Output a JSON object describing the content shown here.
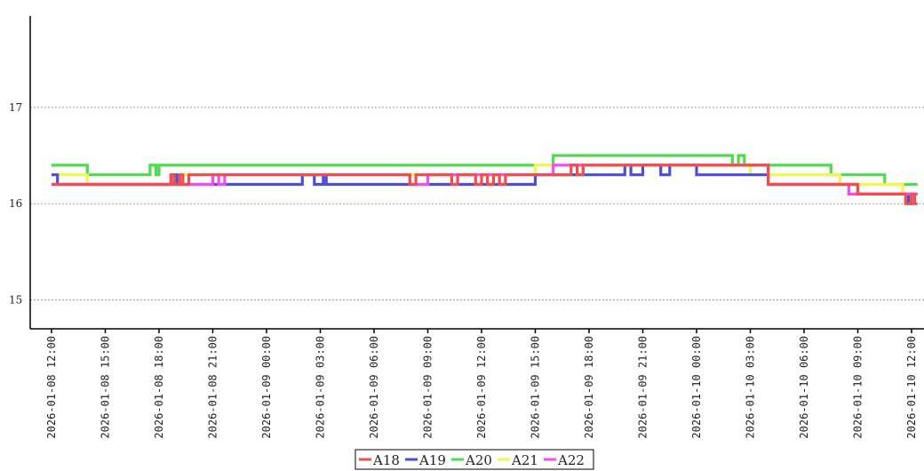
{
  "chart_data": {
    "type": "line",
    "step": true,
    "title": "",
    "xlabel": "",
    "ylabel": "",
    "ylim": [
      14.7,
      17.95
    ],
    "yticks": [
      15,
      16,
      17
    ],
    "xlim": [
      "2026-01-08 12:00",
      "2026-01-10 12:20"
    ],
    "xticks": [
      "2026-01-08 12:00",
      "2026-01-08 15:00",
      "2026-01-08 18:00",
      "2026-01-08 21:00",
      "2026-01-09 00:00",
      "2026-01-09 03:00",
      "2026-01-09 06:00",
      "2026-01-09 09:00",
      "2026-01-09 12:00",
      "2026-01-09 15:00",
      "2026-01-09 18:00",
      "2026-01-09 21:00",
      "2026-01-10 00:00",
      "2026-01-10 03:00",
      "2026-01-10 06:00",
      "2026-01-10 09:00",
      "2026-01-10 12:00"
    ],
    "grid": true,
    "legend_position": "bottom",
    "series": [
      {
        "name": "A20",
        "color": "#4ddc4d",
        "points": [
          [
            "2026-01-08 12:00",
            16.4
          ],
          [
            "2026-01-08 14:00",
            16.3
          ],
          [
            "2026-01-08 17:30",
            16.4
          ],
          [
            "2026-01-08 17:50",
            16.3
          ],
          [
            "2026-01-08 18:00",
            16.4
          ],
          [
            "2026-01-09 16:00",
            16.5
          ],
          [
            "2026-01-10 02:00",
            16.4
          ],
          [
            "2026-01-10 02:20",
            16.5
          ],
          [
            "2026-01-10 02:40",
            16.4
          ],
          [
            "2026-01-10 07:30",
            16.3
          ],
          [
            "2026-01-10 10:30",
            16.2
          ],
          [
            "2026-01-10 12:20",
            16.2
          ]
        ]
      },
      {
        "name": "A21",
        "color": "#f5f54d",
        "points": [
          [
            "2026-01-08 12:00",
            16.3
          ],
          [
            "2026-01-08 14:00",
            16.2
          ],
          [
            "2026-01-08 19:00",
            16.3
          ],
          [
            "2026-01-09 15:00",
            16.4
          ],
          [
            "2026-01-10 03:00",
            16.3
          ],
          [
            "2026-01-10 08:00",
            16.2
          ],
          [
            "2026-01-10 11:30",
            16.1
          ],
          [
            "2026-01-10 12:20",
            16.1
          ]
        ]
      },
      {
        "name": "A19",
        "color": "#4d4ddc",
        "points": [
          [
            "2026-01-08 12:00",
            16.3
          ],
          [
            "2026-01-08 12:20",
            16.2
          ],
          [
            "2026-01-08 18:40",
            16.3
          ],
          [
            "2026-01-08 19:00",
            16.2
          ],
          [
            "2026-01-09 02:00",
            16.3
          ],
          [
            "2026-01-09 02:40",
            16.2
          ],
          [
            "2026-01-09 03:10",
            16.3
          ],
          [
            "2026-01-09 03:20",
            16.2
          ],
          [
            "2026-01-09 15:00",
            16.3
          ],
          [
            "2026-01-09 20:00",
            16.4
          ],
          [
            "2026-01-09 20:20",
            16.3
          ],
          [
            "2026-01-09 21:00",
            16.4
          ],
          [
            "2026-01-09 22:00",
            16.3
          ],
          [
            "2026-01-09 22:30",
            16.4
          ],
          [
            "2026-01-10 00:00",
            16.3
          ],
          [
            "2026-01-10 04:00",
            16.2
          ],
          [
            "2026-01-10 09:00",
            16.1
          ],
          [
            "2026-01-10 11:50",
            16.0
          ],
          [
            "2026-01-10 12:00",
            16.1
          ],
          [
            "2026-01-10 12:20",
            16.1
          ]
        ]
      },
      {
        "name": "A22",
        "color": "#f24df2",
        "points": [
          [
            "2026-01-08 12:00",
            16.2
          ],
          [
            "2026-01-08 21:00",
            16.3
          ],
          [
            "2026-01-08 21:20",
            16.2
          ],
          [
            "2026-01-08 21:40",
            16.3
          ],
          [
            "2026-01-09 08:00",
            16.2
          ],
          [
            "2026-01-09 09:00",
            16.3
          ],
          [
            "2026-01-09 16:00",
            16.4
          ],
          [
            "2026-01-10 04:00",
            16.2
          ],
          [
            "2026-01-10 08:30",
            16.1
          ],
          [
            "2026-01-10 12:20",
            16.1
          ]
        ]
      },
      {
        "name": "A18",
        "color": "#f24d4d",
        "points": [
          [
            "2026-01-08 12:00",
            16.2
          ],
          [
            "2026-01-08 18:40",
            16.3
          ],
          [
            "2026-01-08 18:50",
            16.2
          ],
          [
            "2026-01-08 19:10",
            16.3
          ],
          [
            "2026-01-08 19:20",
            16.2
          ],
          [
            "2026-01-08 19:40",
            16.3
          ],
          [
            "2026-01-09 08:00",
            16.2
          ],
          [
            "2026-01-09 08:20",
            16.3
          ],
          [
            "2026-01-09 10:20",
            16.2
          ],
          [
            "2026-01-09 10:40",
            16.3
          ],
          [
            "2026-01-09 11:40",
            16.2
          ],
          [
            "2026-01-09 12:00",
            16.3
          ],
          [
            "2026-01-09 12:20",
            16.2
          ],
          [
            "2026-01-09 12:40",
            16.3
          ],
          [
            "2026-01-09 13:00",
            16.2
          ],
          [
            "2026-01-09 13:20",
            16.3
          ],
          [
            "2026-01-09 15:00",
            16.3
          ],
          [
            "2026-01-09 17:00",
            16.4
          ],
          [
            "2026-01-09 17:20",
            16.3
          ],
          [
            "2026-01-09 17:40",
            16.4
          ],
          [
            "2026-01-10 04:00",
            16.2
          ],
          [
            "2026-01-10 09:00",
            16.1
          ],
          [
            "2026-01-10 11:40",
            16.0
          ],
          [
            "2026-01-10 12:00",
            16.1
          ],
          [
            "2026-01-10 12:10",
            16.0
          ],
          [
            "2026-01-10 12:20",
            16.0
          ]
        ]
      }
    ],
    "legend_order": [
      "A18",
      "A19",
      "A20",
      "A21",
      "A22"
    ]
  }
}
